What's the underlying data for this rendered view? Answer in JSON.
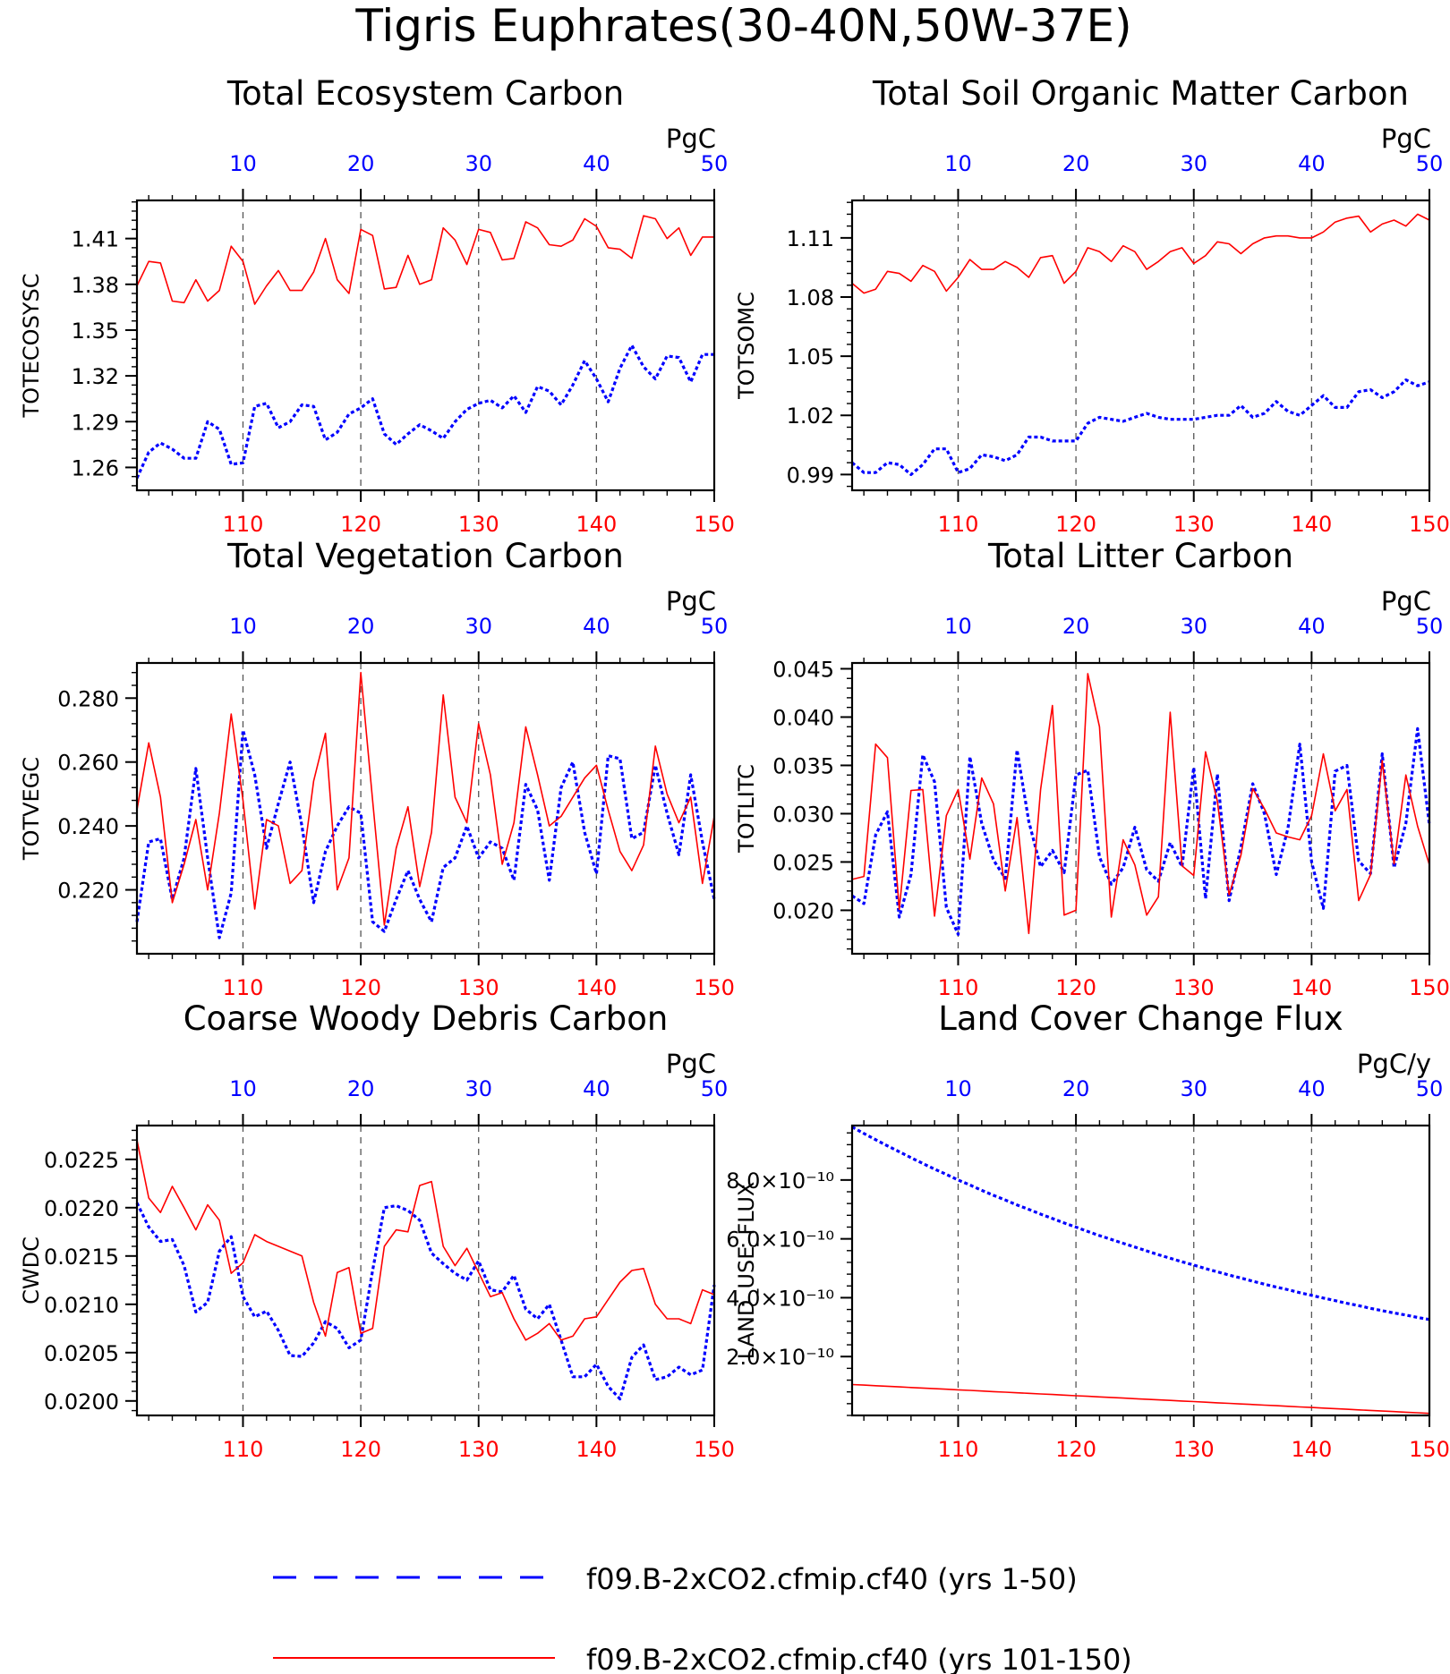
{
  "title": "Tigris Euphrates(30-40N,50W-37E)",
  "colors": {
    "series1": "#0000ff",
    "series2": "#ff0000",
    "axis": "#000000"
  },
  "legend": [
    {
      "label": "f09.B-2xCO2.cfmip.cf40 (yrs 1-50)",
      "color": "#0000ff",
      "style": "dashed"
    },
    {
      "label": "f09.B-2xCO2.cfmip.cf40 (yrs 101-150)",
      "color": "#ff0000",
      "style": "solid"
    }
  ],
  "chart_data": [
    {
      "type": "line",
      "title": "Total Ecosystem Carbon",
      "ylabel": "TOTECOSYSC",
      "units": "PgC",
      "ylim": [
        1.245,
        1.435
      ],
      "yticks": [
        1.26,
        1.29,
        1.32,
        1.35,
        1.38,
        1.41
      ],
      "ytick_labels": [
        "1.26",
        "1.29",
        "1.32",
        "1.35",
        "1.38",
        "1.41"
      ],
      "top_xlim": [
        1,
        50
      ],
      "top_xticks": [
        10,
        20,
        30,
        40,
        50
      ],
      "bottom_xlim": [
        101,
        150
      ],
      "bottom_xticks": [
        110,
        120,
        130,
        140,
        150
      ],
      "series": [
        {
          "axis": "top",
          "x_start": 1,
          "values": [
            1.253,
            1.27,
            1.276,
            1.272,
            1.266,
            1.266,
            1.29,
            1.285,
            1.262,
            1.263,
            1.3,
            1.302,
            1.286,
            1.29,
            1.301,
            1.3,
            1.278,
            1.283,
            1.295,
            1.299,
            1.305,
            1.282,
            1.275,
            1.282,
            1.288,
            1.284,
            1.279,
            1.29,
            1.298,
            1.302,
            1.304,
            1.299,
            1.307,
            1.296,
            1.313,
            1.31,
            1.301,
            1.314,
            1.33,
            1.318,
            1.303,
            1.325,
            1.34,
            1.326,
            1.318,
            1.333,
            1.332,
            1.316,
            1.334,
            1.334
          ]
        },
        {
          "axis": "bottom",
          "x_start": 101,
          "values": [
            1.379,
            1.395,
            1.394,
            1.369,
            1.368,
            1.383,
            1.369,
            1.376,
            1.405,
            1.395,
            1.367,
            1.379,
            1.389,
            1.376,
            1.376,
            1.388,
            1.41,
            1.383,
            1.374,
            1.416,
            1.412,
            1.377,
            1.378,
            1.399,
            1.38,
            1.383,
            1.417,
            1.409,
            1.393,
            1.416,
            1.414,
            1.396,
            1.397,
            1.421,
            1.417,
            1.406,
            1.405,
            1.409,
            1.423,
            1.418,
            1.404,
            1.403,
            1.397,
            1.425,
            1.423,
            1.41,
            1.417,
            1.399,
            1.411,
            1.411
          ]
        }
      ]
    },
    {
      "type": "line",
      "title": "Total Soil Organic Matter Carbon",
      "ylabel": "TOTSOMC",
      "units": "PgC",
      "ylim": [
        0.982,
        1.129
      ],
      "yticks": [
        0.99,
        1.02,
        1.05,
        1.08,
        1.11
      ],
      "ytick_labels": [
        "0.99",
        "1.02",
        "1.05",
        "1.08",
        "1.11"
      ],
      "top_xlim": [
        1,
        50
      ],
      "top_xticks": [
        10,
        20,
        30,
        40,
        50
      ],
      "bottom_xlim": [
        101,
        150
      ],
      "bottom_xticks": [
        110,
        120,
        130,
        140,
        150
      ],
      "series": [
        {
          "axis": "top",
          "x_start": 1,
          "values": [
            0.996,
            0.991,
            0.991,
            0.996,
            0.995,
            0.99,
            0.995,
            1.003,
            1.003,
            0.991,
            0.993,
            1.0,
            0.999,
            0.997,
            1.0,
            1.009,
            1.009,
            1.007,
            1.007,
            1.007,
            1.016,
            1.019,
            1.018,
            1.017,
            1.019,
            1.021,
            1.019,
            1.018,
            1.018,
            1.018,
            1.019,
            1.02,
            1.02,
            1.025,
            1.019,
            1.021,
            1.027,
            1.022,
            1.02,
            1.025,
            1.03,
            1.024,
            1.024,
            1.032,
            1.033,
            1.029,
            1.032,
            1.038,
            1.035,
            1.037
          ]
        },
        {
          "axis": "bottom",
          "x_start": 101,
          "values": [
            1.087,
            1.082,
            1.084,
            1.093,
            1.092,
            1.088,
            1.096,
            1.093,
            1.083,
            1.09,
            1.099,
            1.094,
            1.094,
            1.098,
            1.095,
            1.09,
            1.1,
            1.101,
            1.087,
            1.093,
            1.105,
            1.103,
            1.098,
            1.106,
            1.103,
            1.094,
            1.098,
            1.103,
            1.105,
            1.097,
            1.101,
            1.108,
            1.107,
            1.102,
            1.107,
            1.11,
            1.111,
            1.111,
            1.11,
            1.11,
            1.113,
            1.118,
            1.12,
            1.121,
            1.113,
            1.117,
            1.119,
            1.116,
            1.122,
            1.119
          ]
        }
      ]
    },
    {
      "type": "line",
      "title": "Total Vegetation Carbon",
      "ylabel": "TOTVEGC",
      "units": "PgC",
      "ylim": [
        0.2,
        0.291
      ],
      "yticks": [
        0.22,
        0.24,
        0.26,
        0.28
      ],
      "ytick_labels": [
        "0.220",
        "0.240",
        "0.260",
        "0.280"
      ],
      "top_xlim": [
        1,
        50
      ],
      "top_xticks": [
        10,
        20,
        30,
        40,
        50
      ],
      "bottom_xlim": [
        101,
        150
      ],
      "bottom_xticks": [
        110,
        120,
        130,
        140,
        150
      ],
      "series": [
        {
          "axis": "top",
          "x_start": 1,
          "values": [
            0.21,
            0.235,
            0.236,
            0.217,
            0.23,
            0.258,
            0.23,
            0.205,
            0.219,
            0.27,
            0.256,
            0.233,
            0.247,
            0.26,
            0.24,
            0.216,
            0.232,
            0.24,
            0.246,
            0.244,
            0.21,
            0.207,
            0.217,
            0.226,
            0.217,
            0.21,
            0.227,
            0.23,
            0.24,
            0.23,
            0.235,
            0.233,
            0.223,
            0.253,
            0.245,
            0.223,
            0.252,
            0.26,
            0.238,
            0.225,
            0.262,
            0.261,
            0.236,
            0.238,
            0.259,
            0.244,
            0.231,
            0.256,
            0.235,
            0.217
          ]
        },
        {
          "axis": "bottom",
          "x_start": 101,
          "values": [
            0.245,
            0.266,
            0.249,
            0.216,
            0.228,
            0.242,
            0.22,
            0.244,
            0.275,
            0.248,
            0.214,
            0.242,
            0.24,
            0.222,
            0.226,
            0.254,
            0.269,
            0.22,
            0.23,
            0.288,
            0.248,
            0.209,
            0.233,
            0.246,
            0.221,
            0.238,
            0.281,
            0.249,
            0.241,
            0.272,
            0.256,
            0.228,
            0.241,
            0.271,
            0.256,
            0.24,
            0.243,
            0.249,
            0.255,
            0.259,
            0.245,
            0.232,
            0.226,
            0.234,
            0.265,
            0.25,
            0.241,
            0.249,
            0.222,
            0.243
          ]
        }
      ]
    },
    {
      "type": "line",
      "title": "Total Litter Carbon",
      "ylabel": "TOTLITC",
      "units": "PgC",
      "ylim": [
        0.0155,
        0.0456
      ],
      "yticks": [
        0.02,
        0.025,
        0.03,
        0.035,
        0.04,
        0.045
      ],
      "ytick_labels": [
        "0.020",
        "0.025",
        "0.030",
        "0.035",
        "0.040",
        "0.045"
      ],
      "top_xlim": [
        1,
        50
      ],
      "top_xticks": [
        10,
        20,
        30,
        40,
        50
      ],
      "bottom_xlim": [
        101,
        150
      ],
      "bottom_xticks": [
        110,
        120,
        130,
        140,
        150
      ],
      "series": [
        {
          "axis": "top",
          "x_start": 1,
          "values": [
            0.0215,
            0.0207,
            0.0278,
            0.0302,
            0.0193,
            0.0237,
            0.0361,
            0.0333,
            0.0203,
            0.0175,
            0.0359,
            0.029,
            0.0252,
            0.0233,
            0.0366,
            0.0292,
            0.0245,
            0.0262,
            0.0239,
            0.034,
            0.0345,
            0.0255,
            0.0227,
            0.0244,
            0.0286,
            0.0242,
            0.023,
            0.027,
            0.0245,
            0.0348,
            0.0212,
            0.0341,
            0.021,
            0.0265,
            0.0331,
            0.03,
            0.0237,
            0.0285,
            0.0372,
            0.025,
            0.0202,
            0.0344,
            0.035,
            0.0251,
            0.0238,
            0.0362,
            0.0244,
            0.029,
            0.0388,
            0.0288
          ]
        },
        {
          "axis": "bottom",
          "x_start": 101,
          "values": [
            0.0232,
            0.0235,
            0.0372,
            0.0358,
            0.0201,
            0.0324,
            0.0325,
            0.0194,
            0.0298,
            0.0325,
            0.0253,
            0.0337,
            0.031,
            0.022,
            0.0296,
            0.0176,
            0.0325,
            0.0412,
            0.0195,
            0.02,
            0.0445,
            0.039,
            0.0193,
            0.0273,
            0.0247,
            0.0195,
            0.0214,
            0.0405,
            0.0246,
            0.0236,
            0.0364,
            0.0313,
            0.0216,
            0.0257,
            0.0326,
            0.0305,
            0.028,
            0.0276,
            0.0273,
            0.0298,
            0.0362,
            0.0303,
            0.0325,
            0.021,
            0.0237,
            0.0355,
            0.0248,
            0.034,
            0.0287,
            0.0247
          ]
        }
      ]
    },
    {
      "type": "line",
      "title": "Coarse Woody Debris Carbon",
      "ylabel": "CWDC",
      "units": "PgC",
      "ylim": [
        0.01985,
        0.02285
      ],
      "yticks": [
        0.02,
        0.0205,
        0.021,
        0.0215,
        0.022,
        0.0225
      ],
      "ytick_labels": [
        "0.0200",
        "0.0205",
        "0.0210",
        "0.0215",
        "0.0220",
        "0.0225"
      ],
      "top_xlim": [
        1,
        50
      ],
      "top_xticks": [
        10,
        20,
        30,
        40,
        50
      ],
      "bottom_xlim": [
        101,
        150
      ],
      "bottom_xticks": [
        110,
        120,
        130,
        140,
        150
      ],
      "series": [
        {
          "axis": "top",
          "x_start": 1,
          "values": [
            0.02205,
            0.0218,
            0.02165,
            0.02167,
            0.0214,
            0.02092,
            0.02102,
            0.02155,
            0.0217,
            0.02108,
            0.02087,
            0.02093,
            0.02073,
            0.02047,
            0.02046,
            0.0206,
            0.02082,
            0.02075,
            0.02055,
            0.02063,
            0.02135,
            0.022,
            0.02202,
            0.02197,
            0.02187,
            0.02153,
            0.02142,
            0.02132,
            0.02125,
            0.02145,
            0.02115,
            0.02113,
            0.0213,
            0.02095,
            0.02085,
            0.021,
            0.02063,
            0.02025,
            0.02025,
            0.02038,
            0.02015,
            0.02002,
            0.02045,
            0.02058,
            0.02022,
            0.02025,
            0.02035,
            0.02027,
            0.02032,
            0.0212
          ]
        },
        {
          "axis": "bottom",
          "x_start": 101,
          "values": [
            0.0227,
            0.0221,
            0.02195,
            0.02222,
            0.022,
            0.02177,
            0.02203,
            0.02187,
            0.02132,
            0.02143,
            0.02172,
            0.02165,
            0.0216,
            0.02155,
            0.0215,
            0.02102,
            0.02067,
            0.02133,
            0.02138,
            0.0207,
            0.02075,
            0.0216,
            0.02177,
            0.02175,
            0.02223,
            0.02227,
            0.0216,
            0.0214,
            0.02158,
            0.02133,
            0.02108,
            0.02112,
            0.02085,
            0.02063,
            0.0207,
            0.0208,
            0.02063,
            0.02067,
            0.02085,
            0.02087,
            0.02105,
            0.02123,
            0.02135,
            0.02137,
            0.021,
            0.02085,
            0.02085,
            0.0208,
            0.02115,
            0.0211
          ]
        }
      ]
    },
    {
      "type": "line",
      "title": "Land Cover Change Flux",
      "ylabel": "LAND_USE_FLUX",
      "units": "PgC/y",
      "ylim": [
        0.0,
        9.85e-10
      ],
      "yticks": [
        2e-10,
        4e-10,
        6e-10,
        8e-10
      ],
      "ytick_labels": [
        "2.0×10⁻¹⁰",
        "4.0×10⁻¹⁰",
        "6.0×10⁻¹⁰",
        "8.0×10⁻¹⁰"
      ],
      "top_xlim": [
        1,
        50
      ],
      "top_xticks": [
        10,
        20,
        30,
        40,
        50
      ],
      "bottom_xlim": [
        101,
        150
      ],
      "bottom_xticks": [
        110,
        120,
        130,
        140,
        150
      ],
      "series": [
        {
          "axis": "top",
          "x_start": 1,
          "values": [
            9.8e-10,
            9.58e-10,
            9.37e-10,
            9.16e-10,
            8.96e-10,
            8.76e-10,
            8.56e-10,
            8.37e-10,
            8.19e-10,
            8e-10,
            7.83e-10,
            7.65e-10,
            7.48e-10,
            7.32e-10,
            7.15e-10,
            7e-10,
            6.84e-10,
            6.69e-10,
            6.54e-10,
            6.4e-10,
            6.25e-10,
            6.11e-10,
            5.98e-10,
            5.85e-10,
            5.72e-10,
            5.59e-10,
            5.46e-10,
            5.34e-10,
            5.22e-10,
            5.11e-10,
            4.99e-10,
            4.88e-10,
            4.77e-10,
            4.67e-10,
            4.56e-10,
            4.46e-10,
            4.36e-10,
            4.27e-10,
            4.17e-10,
            4.08e-10,
            3.99e-10,
            3.9e-10,
            3.81e-10,
            3.73e-10,
            3.64e-10,
            3.56e-10,
            3.48e-10,
            3.41e-10,
            3.33e-10,
            3.26e-10
          ]
        },
        {
          "axis": "bottom",
          "x_start": 101,
          "values": [
            1.05e-10,
            1.03e-10,
            1.01e-10,
            9.9e-11,
            9.7e-11,
            9.5e-11,
            9.3e-11,
            9.1e-11,
            8.9e-11,
            8.7e-11,
            8.5e-11,
            8.3e-11,
            8.1e-11,
            7.9e-11,
            7.7e-11,
            7.5e-11,
            7.3e-11,
            7.1e-11,
            6.9e-11,
            6.7e-11,
            6.5e-11,
            6.3e-11,
            6.1e-11,
            5.9e-11,
            5.7e-11,
            5.5e-11,
            5.3e-11,
            5.1e-11,
            4.9e-11,
            4.7e-11,
            4.5e-11,
            4.3e-11,
            4.1e-11,
            3.9e-11,
            3.7e-11,
            3.5e-11,
            3.3e-11,
            3.1e-11,
            2.9e-11,
            2.7e-11,
            2.5e-11,
            2.3e-11,
            2.1e-11,
            1.9e-11,
            1.7e-11,
            1.5e-11,
            1.3e-11,
            1.1e-11,
            9e-12,
            7e-12
          ]
        }
      ]
    }
  ]
}
